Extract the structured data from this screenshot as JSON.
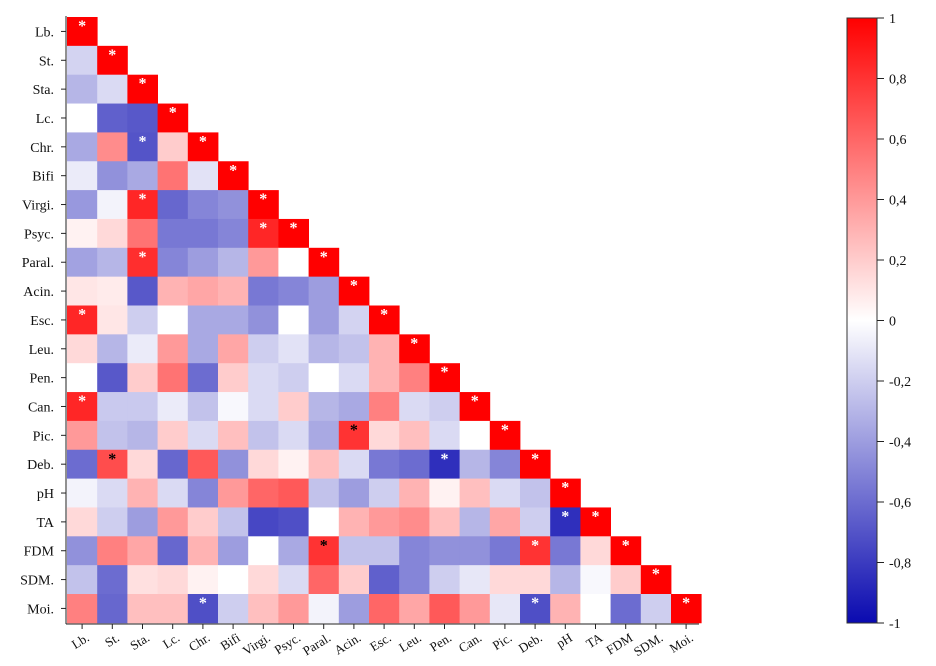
{
  "chart_data": {
    "type": "heatmap",
    "labels": [
      "Lb.",
      "St.",
      "Sta.",
      "Lc.",
      "Chr.",
      "Bifi",
      "Virgi.",
      "Psyc.",
      "Paral.",
      "Acin.",
      "Esc.",
      "Leu.",
      "Pen.",
      "Can.",
      "Pic.",
      "Deb.",
      "pH",
      "TA",
      "FDM",
      "SDM.",
      "Moi."
    ],
    "values": [
      [
        1
      ],
      [
        -0.18,
        1
      ],
      [
        -0.3,
        -0.15,
        1
      ],
      [
        0.0,
        -0.65,
        -0.68,
        1
      ],
      [
        -0.35,
        0.45,
        -0.7,
        0.2,
        1
      ],
      [
        -0.08,
        -0.45,
        -0.35,
        0.55,
        -0.12,
        1
      ],
      [
        -0.42,
        -0.05,
        0.85,
        -0.62,
        -0.5,
        -0.45,
        1
      ],
      [
        0.05,
        0.15,
        0.55,
        -0.55,
        -0.55,
        -0.5,
        0.85,
        1
      ],
      [
        -0.38,
        -0.3,
        0.82,
        -0.5,
        -0.4,
        -0.3,
        0.4,
        0.0,
        1
      ],
      [
        0.1,
        0.08,
        -0.68,
        0.3,
        0.35,
        0.3,
        -0.55,
        -0.5,
        -0.4,
        1
      ],
      [
        0.85,
        0.1,
        -0.2,
        0.0,
        -0.35,
        -0.35,
        -0.45,
        0.0,
        -0.4,
        -0.18,
        1
      ],
      [
        0.15,
        -0.3,
        -0.08,
        0.4,
        -0.35,
        0.35,
        -0.2,
        -0.12,
        -0.3,
        -0.25,
        0.3,
        1
      ],
      [
        0.0,
        -0.68,
        0.2,
        0.55,
        -0.6,
        0.2,
        -0.15,
        -0.2,
        0.0,
        -0.15,
        0.3,
        0.5,
        1
      ],
      [
        0.85,
        -0.22,
        -0.22,
        -0.08,
        -0.25,
        -0.03,
        -0.15,
        0.2,
        -0.3,
        -0.35,
        0.5,
        -0.15,
        -0.2,
        1
      ],
      [
        0.4,
        -0.25,
        -0.3,
        0.2,
        -0.15,
        0.25,
        -0.25,
        -0.15,
        -0.35,
        0.8,
        0.15,
        0.25,
        -0.15,
        0.0,
        1
      ],
      [
        -0.6,
        0.7,
        0.15,
        -0.62,
        0.65,
        -0.45,
        0.15,
        0.05,
        0.25,
        -0.15,
        -0.55,
        -0.6,
        -0.85,
        -0.3,
        -0.5,
        1
      ],
      [
        -0.05,
        -0.15,
        0.3,
        -0.15,
        -0.5,
        0.4,
        0.6,
        0.65,
        -0.25,
        -0.4,
        -0.2,
        0.3,
        0.05,
        0.25,
        -0.15,
        -0.25,
        1
      ],
      [
        0.15,
        -0.2,
        -0.4,
        0.4,
        0.2,
        -0.25,
        -0.75,
        -0.72,
        0.0,
        0.3,
        0.4,
        0.45,
        0.25,
        -0.3,
        0.35,
        -0.2,
        -0.85,
        1
      ],
      [
        -0.45,
        0.5,
        0.35,
        -0.62,
        0.3,
        -0.4,
        0.0,
        -0.35,
        0.8,
        -0.25,
        -0.25,
        -0.5,
        -0.45,
        -0.45,
        -0.55,
        0.8,
        -0.55,
        0.15,
        1
      ],
      [
        -0.25,
        -0.6,
        0.12,
        0.15,
        0.05,
        0.0,
        0.15,
        -0.15,
        0.6,
        0.2,
        -0.65,
        -0.5,
        -0.2,
        -0.1,
        0.15,
        0.15,
        -0.3,
        -0.03,
        0.2,
        1
      ],
      [
        0.5,
        -0.62,
        0.25,
        0.25,
        -0.72,
        -0.2,
        0.25,
        0.4,
        -0.05,
        -0.4,
        0.6,
        0.35,
        0.65,
        0.4,
        -0.1,
        -0.72,
        0.3,
        0.0,
        -0.6,
        -0.2,
        1
      ]
    ],
    "significant": [
      [
        0,
        0,
        "white"
      ],
      [
        1,
        1,
        "white"
      ],
      [
        2,
        2,
        "white"
      ],
      [
        3,
        3,
        "white"
      ],
      [
        4,
        2,
        "white"
      ],
      [
        4,
        4,
        "white"
      ],
      [
        5,
        5,
        "white"
      ],
      [
        6,
        2,
        "white"
      ],
      [
        6,
        6,
        "white"
      ],
      [
        7,
        6,
        "white"
      ],
      [
        7,
        7,
        "white"
      ],
      [
        8,
        2,
        "white"
      ],
      [
        8,
        8,
        "white"
      ],
      [
        9,
        9,
        "white"
      ],
      [
        10,
        0,
        "white"
      ],
      [
        10,
        10,
        "white"
      ],
      [
        11,
        11,
        "white"
      ],
      [
        12,
        12,
        "white"
      ],
      [
        13,
        0,
        "white"
      ],
      [
        13,
        13,
        "white"
      ],
      [
        14,
        9,
        "black"
      ],
      [
        14,
        14,
        "white"
      ],
      [
        15,
        1,
        "black"
      ],
      [
        15,
        12,
        "white"
      ],
      [
        15,
        15,
        "white"
      ],
      [
        16,
        16,
        "white"
      ],
      [
        17,
        16,
        "white"
      ],
      [
        17,
        17,
        "white"
      ],
      [
        18,
        8,
        "black"
      ],
      [
        18,
        15,
        "white"
      ],
      [
        18,
        18,
        "white"
      ],
      [
        19,
        19,
        "white"
      ],
      [
        20,
        4,
        "white"
      ],
      [
        20,
        15,
        "white"
      ],
      [
        20,
        20,
        "white"
      ]
    ],
    "star_symbol": "*",
    "colorbar": {
      "ticks": [
        "1",
        "0,8",
        "0,6",
        "0,4",
        "0,2",
        "0",
        "-0,2",
        "-0,4",
        "-0,6",
        "-0,8",
        "-1"
      ],
      "min": -1,
      "max": 1,
      "colors": {
        "negative": "#0a0ab0",
        "zero": "#ffffff",
        "positive": "#ff0000"
      }
    }
  }
}
